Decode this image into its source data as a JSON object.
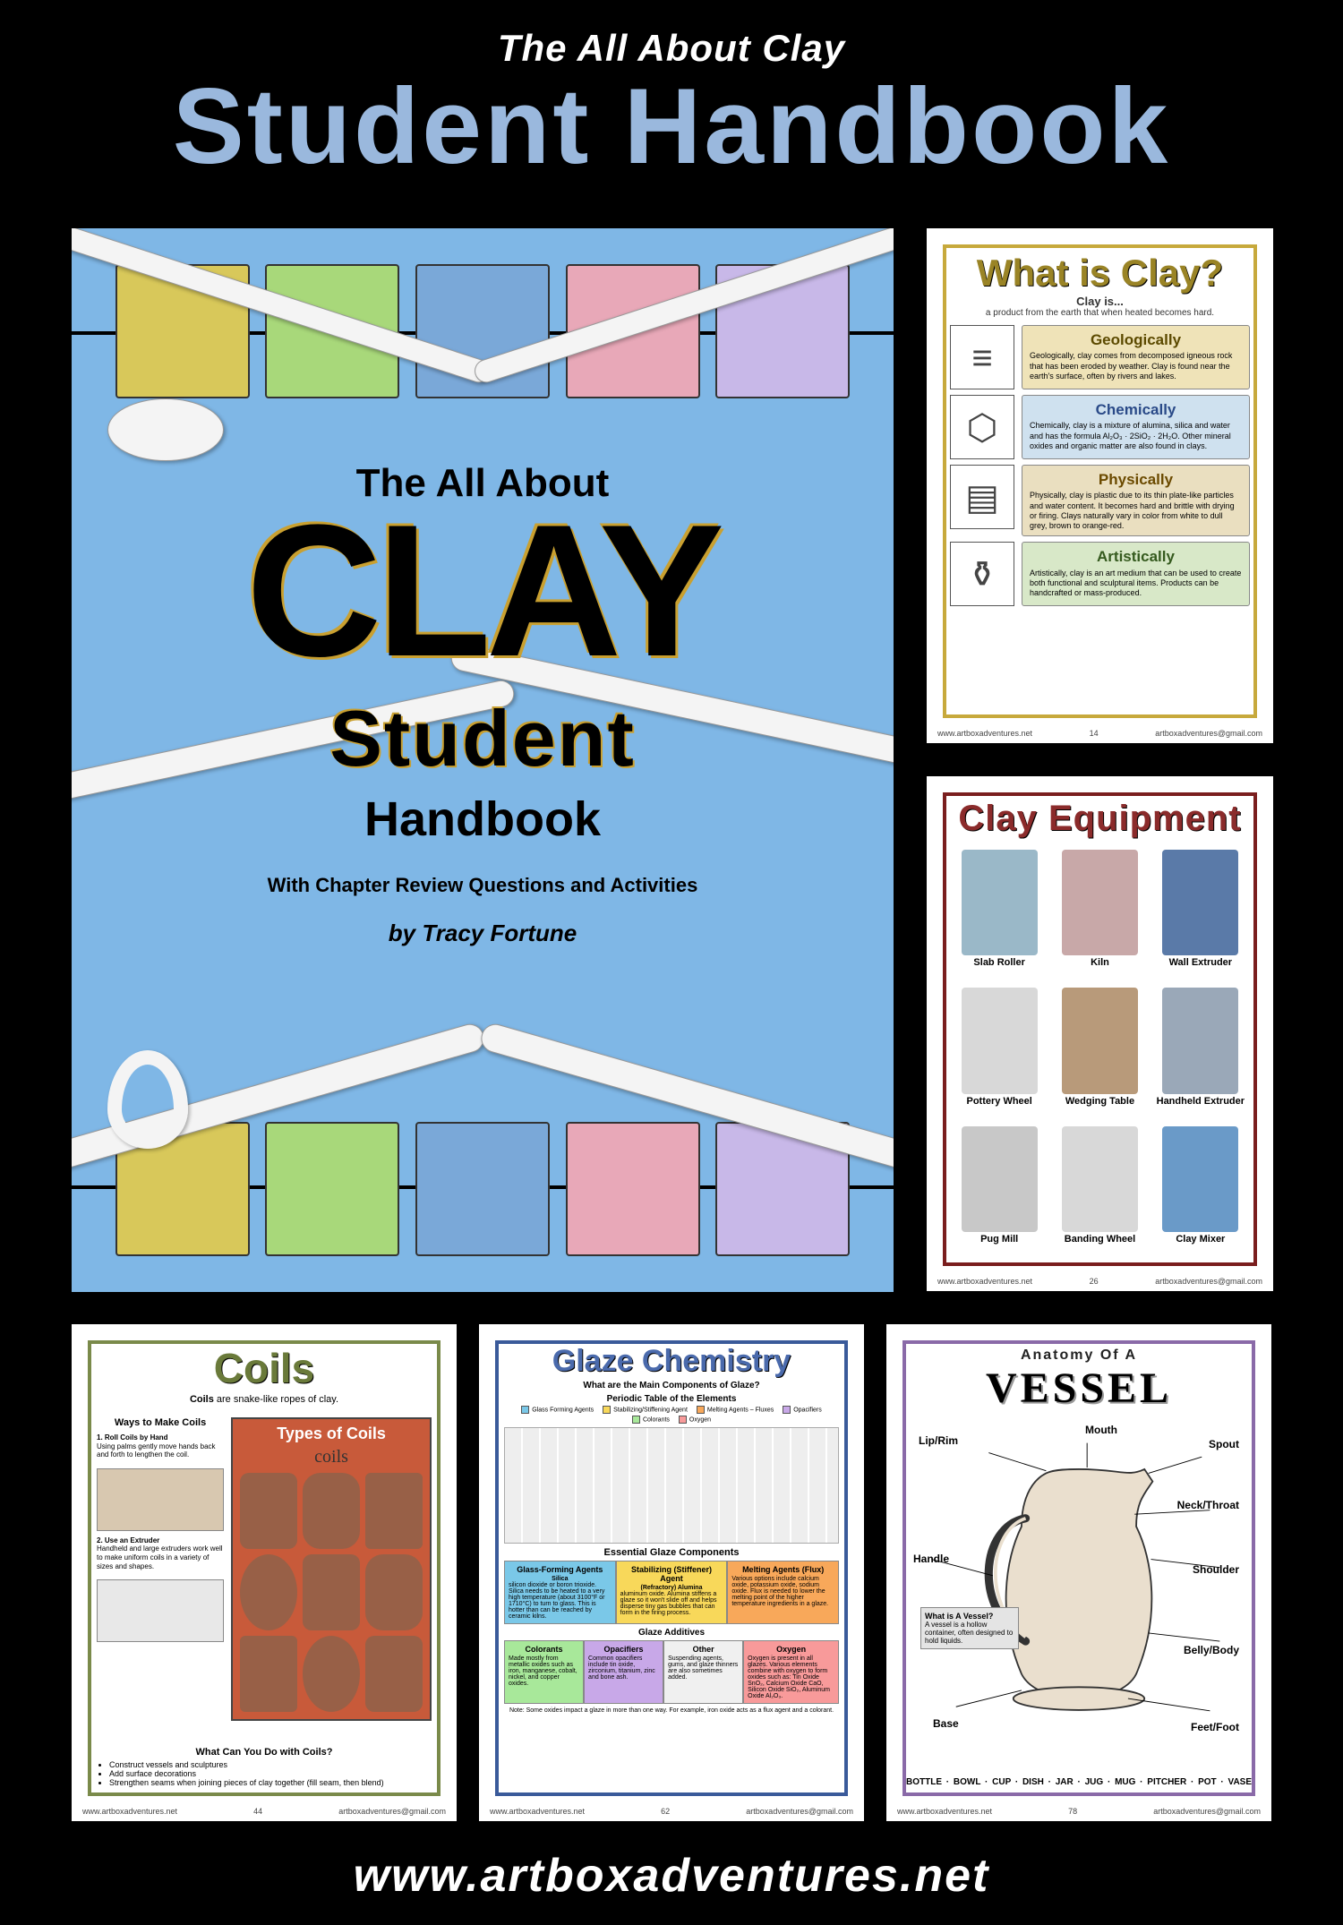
{
  "header": {
    "pre": "The All About Clay",
    "main": "Student Handbook"
  },
  "footer": {
    "url": "www.artboxadventures.net"
  },
  "page_footer": {
    "left": "www.artboxadventures.net",
    "right": "artboxadventures@gmail.com"
  },
  "cover": {
    "bg": "#7fb7e6",
    "swatches_top": [
      "#d8c85a",
      "#a8d87a",
      "#7aa8d8",
      "#e8a8b8",
      "#c8b8e8"
    ],
    "swatches_bot": [
      "#d8c85a",
      "#a8d87a",
      "#7aa8d8",
      "#e8a8b8",
      "#c8b8e8"
    ],
    "line1": "The All About",
    "line2": "CLAY",
    "line3": "Student",
    "line4": "Handbook",
    "sub": "With Chapter Review Questions and Activities",
    "author": "by Tracy Fortune"
  },
  "whatis": {
    "title": "What is Clay?",
    "intro1": "Clay is...",
    "intro2": "a product from the earth that when heated becomes hard.",
    "rows": [
      {
        "icon": "≡",
        "cls": "bx-tan",
        "h": "Geologically",
        "t": "Geologically, clay comes from decomposed igneous rock that has been eroded by weather. Clay is found near the earth's surface, often by rivers and lakes."
      },
      {
        "icon": "⬡",
        "cls": "bx-blue",
        "h": "Chemically",
        "t": "Chemically, clay is a mixture of alumina, silica and water and has the formula Al₂O₃ · 2SiO₂ · 2H₂O. Other mineral oxides and organic matter are also found in clays."
      },
      {
        "icon": "▤",
        "cls": "bx-beige",
        "h": "Physically",
        "t": "Physically, clay is plastic due to its thin plate-like particles and water content. It becomes hard and brittle with drying or firing. Clays naturally vary in color from white to dull grey, brown to orange-red."
      },
      {
        "icon": "⚱",
        "cls": "bx-green",
        "h": "Artistically",
        "t": "Artistically, clay is an art medium that can be used to create both functional and sculptural items. Products can be handcrafted or mass-produced."
      }
    ],
    "page": "14"
  },
  "equip": {
    "title": "Clay Equipment",
    "items": [
      {
        "label": "Slab Roller",
        "color": "#9ab8c8"
      },
      {
        "label": "Kiln",
        "color": "#c8a8a8"
      },
      {
        "label": "Wall Extruder",
        "color": "#5a7aa8"
      },
      {
        "label": "Pottery Wheel",
        "color": "#d8d8d8"
      },
      {
        "label": "Wedging Table",
        "color": "#b89a7a"
      },
      {
        "label": "Handheld Extruder",
        "color": "#9aa8b8"
      },
      {
        "label": "Pug Mill",
        "color": "#c8c8c8"
      },
      {
        "label": "Banding Wheel",
        "color": "#d8d8d8"
      },
      {
        "label": "Clay Mixer",
        "color": "#6a9ac8"
      }
    ],
    "page": "26"
  },
  "coils": {
    "title": "Coils",
    "sub_bold": "Coils",
    "sub_rest": " are snake-like ropes of clay.",
    "ways_title": "Ways to Make Coils",
    "step1_h": "1. Roll Coils by Hand",
    "step1_t": "Using palms gently move hands back and forth to lengthen the coil.",
    "step2_h": "2. Use an Extruder",
    "step2_t": "Handheld and large extruders work well to make uniform coils in a variety of sizes and shapes.",
    "types_title": "Types of Coils",
    "types_script": "coils",
    "foot_title": "What Can You Do with Coils?",
    "foot_items": [
      "Construct vessels and sculptures",
      "Add surface decorations",
      "Strengthen seams when joining pieces of clay together (fill seam, then blend)"
    ],
    "page": "44"
  },
  "glaze": {
    "title": "Glaze Chemistry",
    "q": "What are the Main Components of Glaze?",
    "pt_title": "Periodic Table of the Elements",
    "legend": [
      {
        "c": "#7ac8e8",
        "t": "Glass Forming Agents"
      },
      {
        "c": "#f8d85a",
        "t": "Stabilizing/Stiffening Agent"
      },
      {
        "c": "#f8a85a",
        "t": "Melting Agents – Fluxes"
      },
      {
        "c": "#c8a8e8",
        "t": "Opacifiers"
      },
      {
        "c": "#a8e89a",
        "t": "Colorants"
      },
      {
        "c": "#f89a9a",
        "t": "Oxygen"
      }
    ],
    "comp_title": "Essential Glaze Components",
    "comp": [
      {
        "bg": "#7ac8e8",
        "h": "Glass-Forming Agents",
        "sub": "Silica",
        "t": "silicon dioxide or boron trioxide. Silica needs to be heated to a very high temperature (about 3100°F or 1710°C) to turn to glass. This is hotter than can be reached by ceramic kilns."
      },
      {
        "bg": "#f8d85a",
        "h": "Stabilizing (Stiffener) Agent",
        "sub": "(Refractory) Alumina",
        "t": "aluminum oxide. Alumina stiffens a glaze so it won't slide off and helps disperse tiny gas bubbles that can form in the firing process."
      },
      {
        "bg": "#f8a85a",
        "h": "Melting Agents (Flux)",
        "sub": "",
        "t": "Various options include calcium oxide, potassium oxide, sodium oxide. Flux is needed to lower the melting point of the higher temperature ingredients in a glaze."
      }
    ],
    "add_title": "Glaze Additives",
    "add": [
      {
        "bg": "#a8e89a",
        "h": "Colorants",
        "t": "Made mostly from metallic oxides such as iron, manganese, cobalt, nickel, and copper oxides."
      },
      {
        "bg": "#c8a8e8",
        "h": "Opacifiers",
        "t": "Common opacifiers include tin oxide, zirconium, titanium, zinc and bone ash."
      },
      {
        "bg": "#f0f0f0",
        "h": "Other",
        "t": "Suspending agents, gums, and glaze thinners are also sometimes added."
      }
    ],
    "oxygen": {
      "bg": "#f89a9a",
      "h": "Oxygen",
      "t": "Oxygen is present in all glazes. Various elements combine with oxygen to form oxides such as: Tin Oxide SnO₂, Calcium Oxide CaO, Silicon Oxide SiO₂, Aluminum Oxide Al₂O₃."
    },
    "note": "Note: Some oxides impact a glaze in more than one way. For example, iron oxide acts as a flux agent and a colorant.",
    "page": "62"
  },
  "vessel": {
    "pre": "Anatomy Of A",
    "title": "VESSEL",
    "labels": {
      "lip": "Lip/Rim",
      "mouth": "Mouth",
      "spout": "Spout",
      "handle": "Handle",
      "neck": "Neck/Throat",
      "shoulder": "Shoulder",
      "belly": "Belly/Body",
      "base": "Base",
      "feet": "Feet/Foot"
    },
    "sidebox_h": "What is A Vessel?",
    "sidebox_t": "A vessel is a hollow container, often designed to hold liquids.",
    "bottom": "BOTTLE · BOWL · CUP · DISH · JAR · JUG · MUG · PITCHER · POT · VASE",
    "page": "78"
  }
}
